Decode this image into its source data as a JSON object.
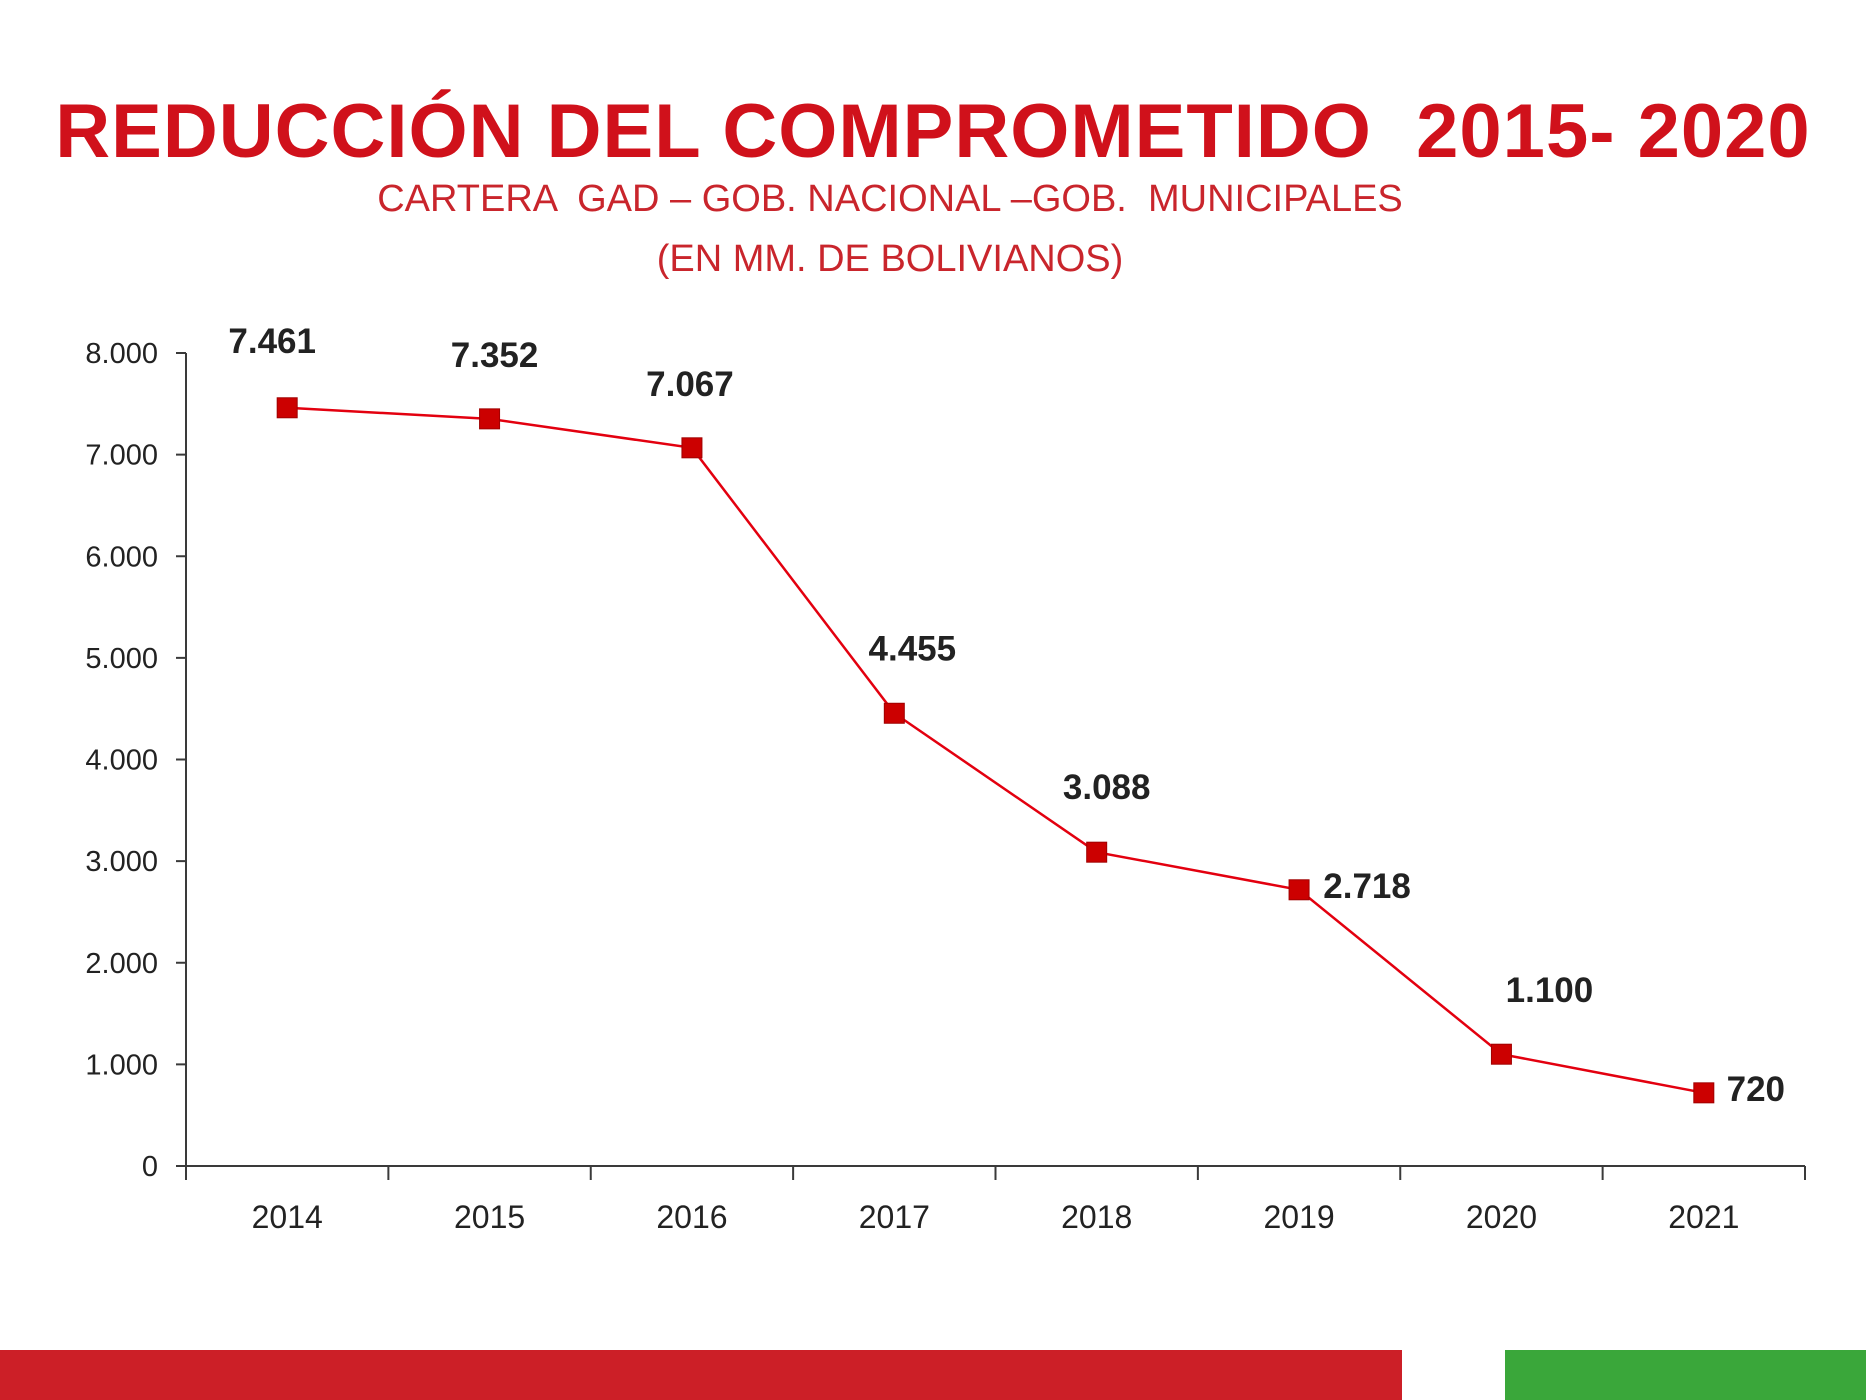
{
  "title": "REDUCCIÓN DEL COMPROMETIDO  2015- 2020",
  "subtitle": "CARTERA  GAD – GOB. NACIONAL –GOB.  MUNICIPALES",
  "subtitle2": "(EN MM. DE BOLIVIANOS)",
  "colors": {
    "title": "#d0111b",
    "subtitle": "#c9252c",
    "series": "#e3000f",
    "marker": "#cc0000",
    "axis": "#3a3a3a",
    "footer_red": "#cc1f27",
    "footer_green": "#3aa73a"
  },
  "chart_data": {
    "type": "line",
    "categories": [
      "2014",
      "2015",
      "2016",
      "2017",
      "2018",
      "2019",
      "2020",
      "2021"
    ],
    "series": [
      {
        "values": [
          7461,
          7352,
          7067,
          4455,
          3088,
          2718,
          1100,
          720
        ],
        "labels": [
          "7.461",
          "7.352",
          "7.067",
          "4.455",
          "3.088",
          "2.718",
          "1.100",
          "720"
        ],
        "marker": "square"
      }
    ],
    "yticks": [
      0,
      1000,
      2000,
      3000,
      4000,
      5000,
      6000,
      7000,
      8000
    ],
    "ytick_labels": [
      "0",
      "1.000",
      "2.000",
      "3.000",
      "4.000",
      "5.000",
      "6.000",
      "7.000",
      "8.000"
    ],
    "ylim": [
      0,
      8000
    ],
    "grid": false,
    "legend": "none"
  }
}
